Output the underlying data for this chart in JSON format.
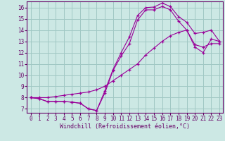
{
  "xlabel": "Windchill (Refroidissement éolien,°C)",
  "bg_color": "#cce8e4",
  "grid_color": "#a0c8c4",
  "line_color": "#990099",
  "spine_color": "#660066",
  "text_color": "#660066",
  "xlim_min": -0.5,
  "xlim_max": 23.4,
  "ylim_min": 6.65,
  "ylim_max": 16.55,
  "xticks": [
    0,
    1,
    2,
    3,
    4,
    5,
    6,
    7,
    8,
    9,
    10,
    11,
    12,
    13,
    14,
    15,
    16,
    17,
    18,
    19,
    20,
    21,
    22,
    23
  ],
  "yticks": [
    7,
    8,
    9,
    10,
    11,
    12,
    13,
    14,
    15,
    16
  ],
  "line1_x": [
    0,
    1,
    2,
    3,
    4,
    5,
    6,
    7,
    8,
    9,
    10,
    11,
    12,
    13,
    14,
    15,
    16,
    17,
    18,
    19,
    20,
    21,
    22,
    23
  ],
  "line1_y": [
    8.0,
    7.9,
    7.65,
    7.65,
    7.65,
    7.6,
    7.5,
    7.0,
    6.85,
    8.6,
    10.5,
    12.0,
    13.4,
    15.3,
    16.0,
    16.05,
    16.4,
    16.1,
    15.2,
    14.7,
    13.7,
    13.8,
    14.0,
    13.0
  ],
  "line2_x": [
    0,
    1,
    2,
    3,
    4,
    5,
    6,
    7,
    8,
    9,
    10,
    11,
    12,
    13,
    14,
    15,
    16,
    17,
    18,
    19,
    20,
    21,
    22,
    23
  ],
  "line2_y": [
    8.0,
    7.9,
    7.65,
    7.65,
    7.65,
    7.6,
    7.5,
    7.0,
    6.85,
    8.4,
    10.4,
    11.7,
    12.8,
    14.9,
    15.8,
    15.8,
    16.1,
    15.8,
    14.8,
    14.0,
    12.7,
    12.5,
    12.8,
    12.8
  ],
  "line3_x": [
    0,
    1,
    2,
    3,
    4,
    5,
    6,
    7,
    8,
    9,
    10,
    11,
    12,
    13,
    14,
    15,
    16,
    17,
    18,
    19,
    20,
    21,
    22,
    23
  ],
  "line3_y": [
    8.0,
    8.0,
    8.0,
    8.1,
    8.2,
    8.3,
    8.4,
    8.5,
    8.7,
    9.0,
    9.5,
    10.0,
    10.5,
    11.0,
    11.8,
    12.4,
    13.0,
    13.5,
    13.8,
    14.0,
    12.5,
    12.0,
    13.2,
    13.0
  ]
}
